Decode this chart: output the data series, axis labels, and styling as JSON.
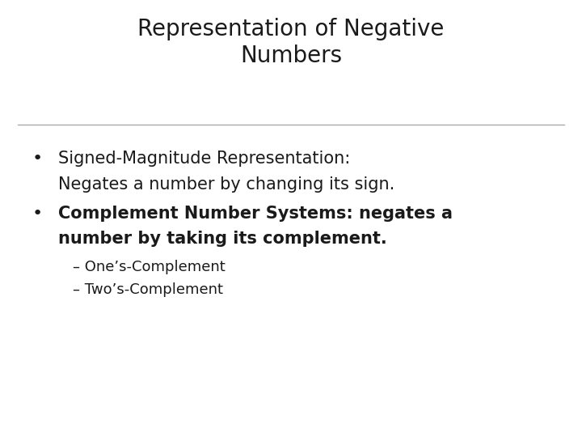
{
  "title_line1": "Representation of Negative",
  "title_line2": "Numbers",
  "title_fontsize": 20,
  "title_color": "#1a1a1a",
  "background_color": "#ffffff",
  "line_color": "#aaaaaa",
  "bullet1_main": "Signed-Magnitude Representation:",
  "bullet1_sub": "Negates a number by changing its sign.",
  "bullet2_main": "Complement Number Systems: negates a",
  "bullet2_sub": "number by taking its complement.",
  "sub_bullet1": "– One’s-Complement",
  "sub_bullet2": "– Two’s-Complement",
  "bullet_fontsize": 15,
  "sub_bullet_fontsize": 13,
  "text_color": "#1a1a1a",
  "bullet2_fontweight": "bold"
}
